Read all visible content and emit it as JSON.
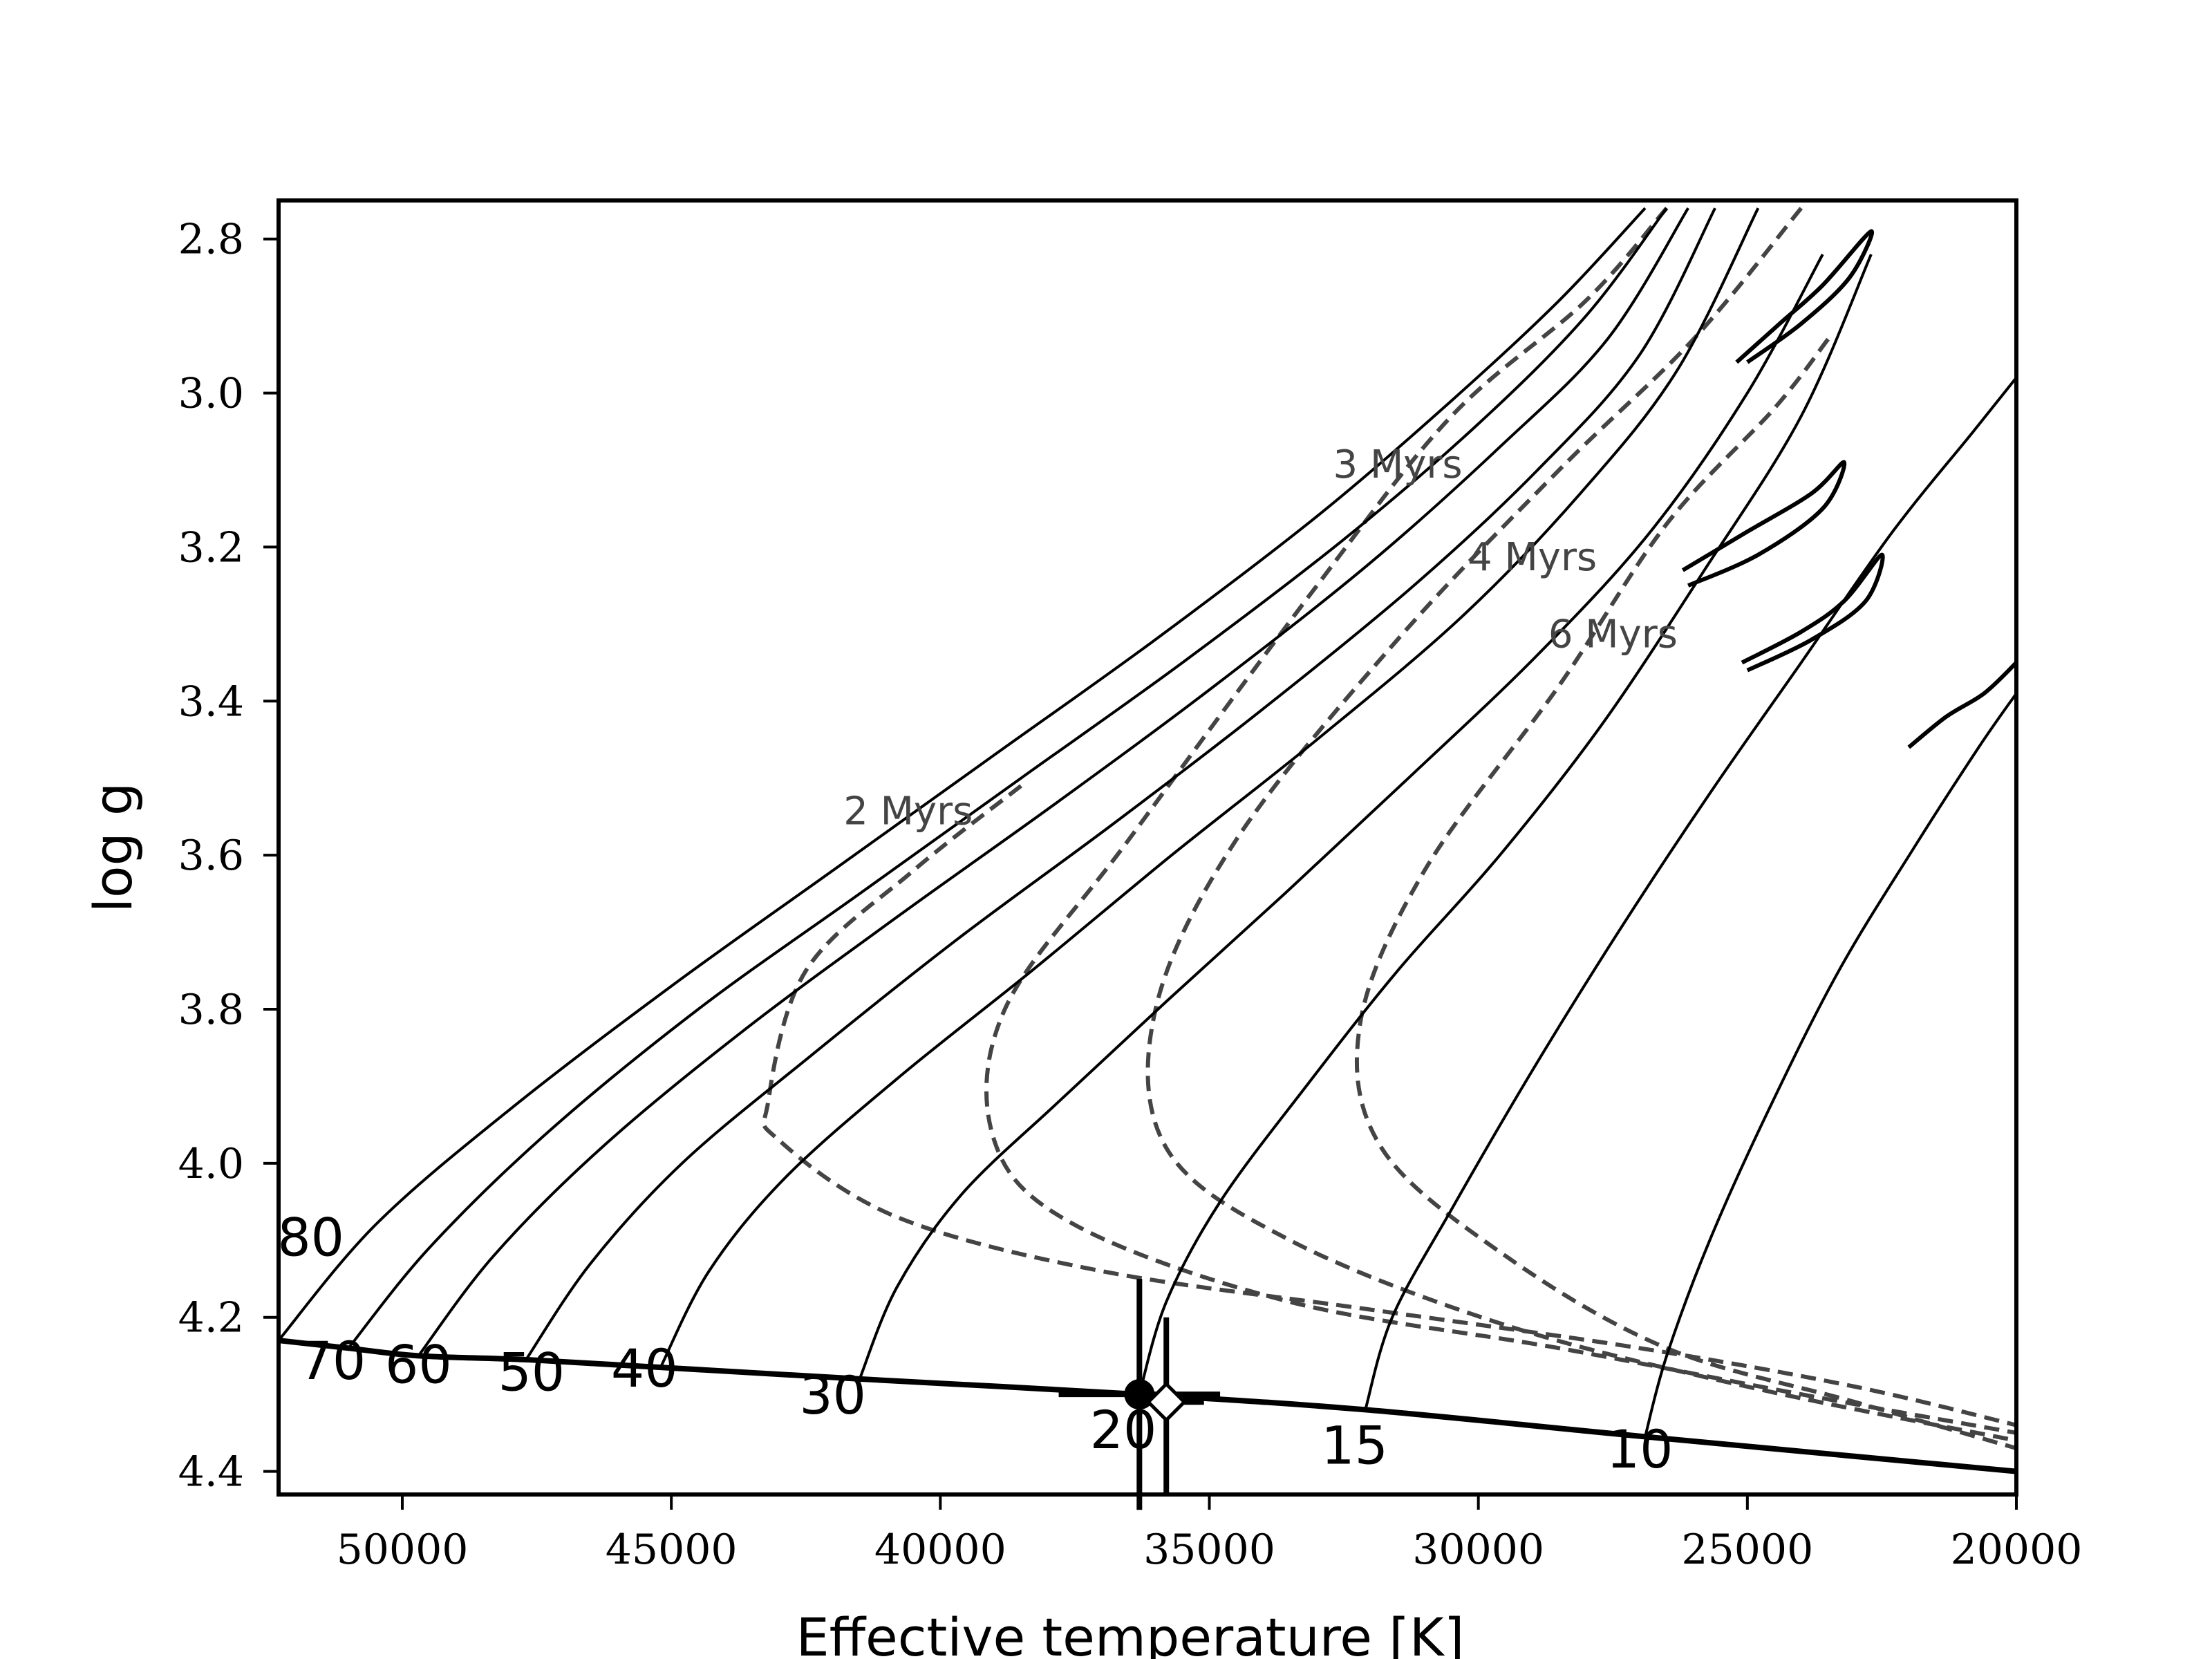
{
  "chart_data": {
    "type": "line",
    "xlabel": "Effective temperature [K]",
    "ylabel": "log g",
    "xlim": [
      52300,
      20000
    ],
    "ylim": [
      4.43,
      2.75
    ],
    "x_inverted": true,
    "y_inverted": true,
    "xticks": [
      50000,
      45000,
      40000,
      35000,
      30000,
      25000,
      20000
    ],
    "xtick_labels": [
      "50000",
      "45000",
      "40000",
      "35000",
      "30000",
      "25000",
      "20000"
    ],
    "yticks": [
      2.8,
      3.0,
      3.2,
      3.4,
      3.6,
      3.8,
      4.0,
      4.2,
      4.4
    ],
    "ytick_labels": [
      "2.8",
      "3.0",
      "3.2",
      "3.4",
      "3.6",
      "3.8",
      "4.0",
      "4.2",
      "4.4"
    ],
    "colors": {
      "tracks": "#000000",
      "isochrones": "#444444",
      "zams": "#000000"
    },
    "zams": {
      "x": [
        52300,
        51000,
        49700,
        47700,
        45200,
        41500,
        36300,
        32100,
        26900,
        20000
      ],
      "y": [
        4.23,
        4.24,
        4.25,
        4.255,
        4.265,
        4.28,
        4.3,
        4.32,
        4.355,
        4.4
      ]
    },
    "tracks": [
      {
        "label": "80",
        "x": [
          52300,
          50500,
          48000,
          45000,
          42000,
          39000,
          36000,
          33000,
          30500,
          28500,
          26900
        ],
        "y": [
          4.23,
          4.08,
          3.93,
          3.77,
          3.62,
          3.47,
          3.32,
          3.16,
          3.01,
          2.88,
          2.76
        ]
      },
      {
        "label": "70",
        "x": [
          51000,
          49500,
          47300,
          44500,
          41500,
          38500,
          35500,
          32500,
          30000,
          28000,
          26500
        ],
        "y": [
          4.24,
          4.11,
          3.96,
          3.8,
          3.65,
          3.5,
          3.35,
          3.19,
          3.04,
          2.9,
          2.76
        ]
      },
      {
        "label": "60",
        "x": [
          49700,
          48300,
          46300,
          43700,
          40800,
          37800,
          34900,
          32000,
          29600,
          27600,
          26100
        ],
        "y": [
          4.25,
          4.12,
          3.98,
          3.83,
          3.68,
          3.53,
          3.38,
          3.22,
          3.07,
          2.93,
          2.76
        ]
      },
      {
        "label": "50",
        "x": [
          47700,
          46500,
          44800,
          42400,
          39700,
          36800,
          34000,
          31200,
          28900,
          27000,
          25600
        ],
        "y": [
          4.255,
          4.13,
          4.0,
          3.86,
          3.71,
          3.56,
          3.41,
          3.25,
          3.1,
          2.95,
          2.76
        ]
      },
      {
        "label": "40",
        "x": [
          45200,
          44300,
          42900,
          40800,
          38300,
          35700,
          33000,
          30300,
          28100,
          26300,
          24800
        ],
        "y": [
          4.265,
          4.14,
          4.02,
          3.89,
          3.75,
          3.6,
          3.45,
          3.29,
          3.13,
          2.97,
          2.76
        ]
      },
      {
        "label": "30",
        "x": [
          41500,
          40800,
          39600,
          37800,
          35800,
          33600,
          31300,
          28900,
          26800,
          25000,
          23600
        ],
        "y": [
          4.28,
          4.16,
          4.04,
          3.92,
          3.79,
          3.65,
          3.5,
          3.34,
          3.18,
          3.0,
          2.82
        ]
      },
      {
        "label": "20",
        "x": [
          36300,
          35800,
          34800,
          33200,
          31500,
          29600,
          27700,
          25800,
          24000,
          22700
        ],
        "y": [
          4.3,
          4.18,
          4.05,
          3.9,
          3.75,
          3.6,
          3.43,
          3.23,
          3.03,
          2.82
        ]
      },
      {
        "label": "15",
        "x": [
          32100,
          31600,
          30500,
          29000,
          27400,
          25700,
          24000,
          22300,
          20800,
          20000
        ],
        "y": [
          4.32,
          4.2,
          4.06,
          3.88,
          3.7,
          3.52,
          3.35,
          3.18,
          3.05,
          2.98
        ]
      },
      {
        "label": "10",
        "x": [
          26900,
          26500,
          25700,
          24600,
          23300,
          21900,
          20700,
          20000
        ],
        "y": [
          4.355,
          4.25,
          4.1,
          3.93,
          3.75,
          3.59,
          3.46,
          3.39
        ]
      }
    ],
    "blue_loops": [
      {
        "x": [
          25200,
          24400,
          23600,
          22700,
          23100,
          24000,
          25000
        ],
        "y": [
          2.96,
          2.91,
          2.86,
          2.79,
          2.85,
          2.91,
          2.96
        ]
      },
      {
        "x": [
          26200,
          25000,
          23800,
          23200,
          23600,
          24800,
          26100
        ],
        "y": [
          3.23,
          3.18,
          3.13,
          3.09,
          3.15,
          3.21,
          3.25
        ]
      },
      {
        "x": [
          25100,
          24000,
          23200,
          22500,
          22800,
          23800,
          25000
        ],
        "y": [
          3.35,
          3.31,
          3.27,
          3.21,
          3.27,
          3.32,
          3.36
        ]
      },
      {
        "x": [
          22000,
          21300,
          20600,
          20000
        ],
        "y": [
          3.46,
          3.42,
          3.39,
          3.35
        ]
      }
    ],
    "isochrones": [
      {
        "label": "2 Myrs",
        "x": [
          38500,
          40500,
          42500,
          43200,
          43000,
          40800,
          37000,
          32000,
          27000,
          23000,
          20000
        ],
        "y": [
          3.51,
          3.62,
          3.75,
          3.92,
          3.97,
          4.07,
          4.14,
          4.19,
          4.24,
          4.29,
          4.34
        ]
      },
      {
        "label": "3 Myrs",
        "x": [
          26500,
          28000,
          30500,
          33000,
          36500,
          38800,
          39000,
          37500,
          33500,
          28500,
          24000,
          20000
        ],
        "y": [
          2.76,
          2.88,
          3.03,
          3.25,
          3.58,
          3.8,
          3.97,
          4.08,
          4.18,
          4.24,
          4.3,
          4.35
        ]
      },
      {
        "label": "4 Myrs",
        "x": [
          24000,
          26000,
          28500,
          31500,
          34500,
          36000,
          35800,
          33500,
          29500,
          25000,
          20000
        ],
        "y": [
          2.76,
          2.93,
          3.1,
          3.32,
          3.58,
          3.8,
          3.98,
          4.1,
          4.21,
          4.29,
          4.36
        ]
      },
      {
        "label": "6 Myrs",
        "x": [
          23500,
          24500,
          26500,
          28500,
          31000,
          32200,
          31800,
          29500,
          26500,
          23000,
          20000
        ],
        "y": [
          2.93,
          3.02,
          3.17,
          3.38,
          3.62,
          3.82,
          3.98,
          4.12,
          4.24,
          4.31,
          4.37
        ]
      }
    ],
    "isochrone_label_positions": [
      {
        "label": "2 Myrs",
        "x": 41800,
        "y": 3.56
      },
      {
        "label": "3 Myrs",
        "x": 32700,
        "y": 3.11
      },
      {
        "label": "4 Myrs",
        "x": 30200,
        "y": 3.23
      },
      {
        "label": "6 Myrs",
        "x": 28700,
        "y": 3.33
      }
    ],
    "track_label_positions": [
      {
        "label": "80",
        "x": 51700,
        "y": 4.12
      },
      {
        "label": "70",
        "x": 51300,
        "y": 4.28
      },
      {
        "label": "60",
        "x": 49700,
        "y": 4.285
      },
      {
        "label": "50",
        "x": 47600,
        "y": 4.295
      },
      {
        "label": "40",
        "x": 45500,
        "y": 4.29
      },
      {
        "label": "30",
        "x": 42000,
        "y": 4.325
      },
      {
        "label": "20",
        "x": 36600,
        "y": 4.37
      },
      {
        "label": "15",
        "x": 32300,
        "y": 4.39
      },
      {
        "label": "10",
        "x": 27000,
        "y": 4.395
      }
    ],
    "points": [
      {
        "name": "filled-circle",
        "x": 36300,
        "y": 4.3,
        "xerr": 1500,
        "yerr_up": 0.15,
        "yerr_down": 0.15,
        "marker": "circle"
      },
      {
        "name": "open-diamond",
        "x": 35800,
        "y": 4.31,
        "xerr": 700,
        "yerr_up": 0.11,
        "yerr_down": 0.12,
        "marker": "diamond"
      }
    ]
  }
}
